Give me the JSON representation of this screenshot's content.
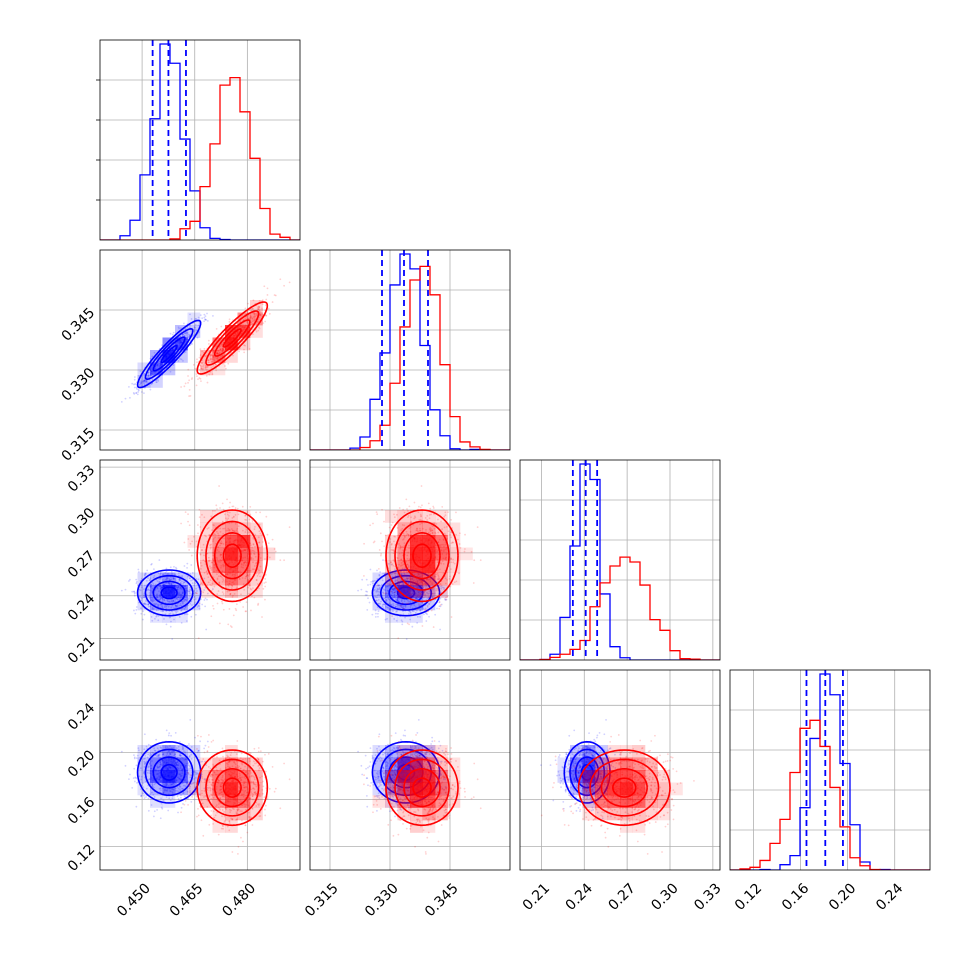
{
  "chart_data": {
    "type": "corner",
    "colors": {
      "blue": "#0000ff",
      "red": "#ff0000"
    },
    "grid": true,
    "parameters": [
      {
        "range": [
          0.438,
          0.495
        ],
        "ticks": [
          0.45,
          0.465,
          0.48
        ],
        "tick_labels": [
          "0.450",
          "0.465",
          "0.480"
        ]
      },
      {
        "range": [
          0.31,
          0.36
        ],
        "ticks": [
          0.315,
          0.33,
          0.345
        ],
        "tick_labels": [
          "0.315",
          "0.330",
          "0.345"
        ]
      },
      {
        "range": [
          0.195,
          0.335
        ],
        "ticks": [
          0.21,
          0.24,
          0.27,
          0.3,
          0.33
        ],
        "tick_labels": [
          "0.21",
          "0.24",
          "0.27",
          "0.30",
          "0.33"
        ]
      },
      {
        "range": [
          0.1,
          0.27
        ],
        "ticks": [
          0.12,
          0.16,
          0.2,
          0.24
        ],
        "tick_labels": [
          "0.12",
          "0.16",
          "0.20",
          "0.24"
        ]
      }
    ],
    "series": [
      {
        "color": "blue",
        "means": [
          0.4577,
          0.334,
          0.242,
          0.183
        ],
        "stds": [
          0.0045,
          0.0042,
          0.008,
          0.013
        ],
        "correlations": [
          [
            0,
            1,
            0.92
          ]
        ],
        "quantile_lines": [
          [
            0.453,
            0.4575,
            0.4625
          ],
          [
            0.328,
            0.3335,
            0.3395
          ],
          [
            0.232,
            0.241,
            0.249
          ],
          [
            0.165,
            0.181,
            0.196
          ]
        ]
      },
      {
        "color": "red",
        "means": [
          0.4757,
          0.338,
          0.268,
          0.17
        ],
        "stds": [
          0.005,
          0.0045,
          0.016,
          0.016
        ],
        "correlations": [
          [
            0,
            1,
            0.9
          ]
        ]
      }
    ],
    "hist_bins": 20,
    "contour_levels": [
      0.5,
      1.0,
      1.5,
      2.0
    ]
  }
}
